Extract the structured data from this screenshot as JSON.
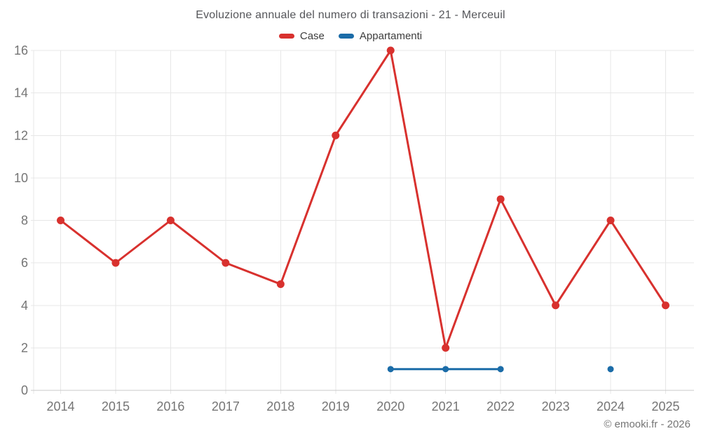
{
  "title": "Evoluzione annuale del numero di transazioni - 21 - Merceuil",
  "footer": "© emooki.fr - 2026",
  "colors": {
    "grid": "#e7e7e7",
    "axis_line": "#c9c9c9",
    "tick_label": "#757575",
    "title_text": "#55565a",
    "legend_text": "#3d3d3d",
    "case_red": "#d8312e",
    "appartamenti_blue": "#1b6ca8"
  },
  "chart_data": {
    "type": "line",
    "title": "Evoluzione annuale del numero di transazioni - 21 - Merceuil",
    "categories": [
      "2014",
      "2015",
      "2016",
      "2017",
      "2018",
      "2019",
      "2020",
      "2021",
      "2022",
      "2023",
      "2024",
      "2025"
    ],
    "series": [
      {
        "name": "Case",
        "color": "#d8312e",
        "values": [
          8,
          6,
          8,
          6,
          5,
          12,
          16,
          2,
          9,
          4,
          8,
          4
        ]
      },
      {
        "name": "Appartamenti",
        "color": "#1b6ca8",
        "values": [
          null,
          null,
          null,
          null,
          null,
          null,
          1,
          1,
          1,
          null,
          1,
          null
        ]
      }
    ],
    "xlabel": "",
    "ylabel": "",
    "ylim": [
      0,
      16
    ],
    "yticks": [
      0,
      2,
      4,
      6,
      8,
      10,
      12,
      14,
      16
    ],
    "grid": true,
    "legend_position": "top",
    "footer": "© emooki.fr - 2026"
  }
}
